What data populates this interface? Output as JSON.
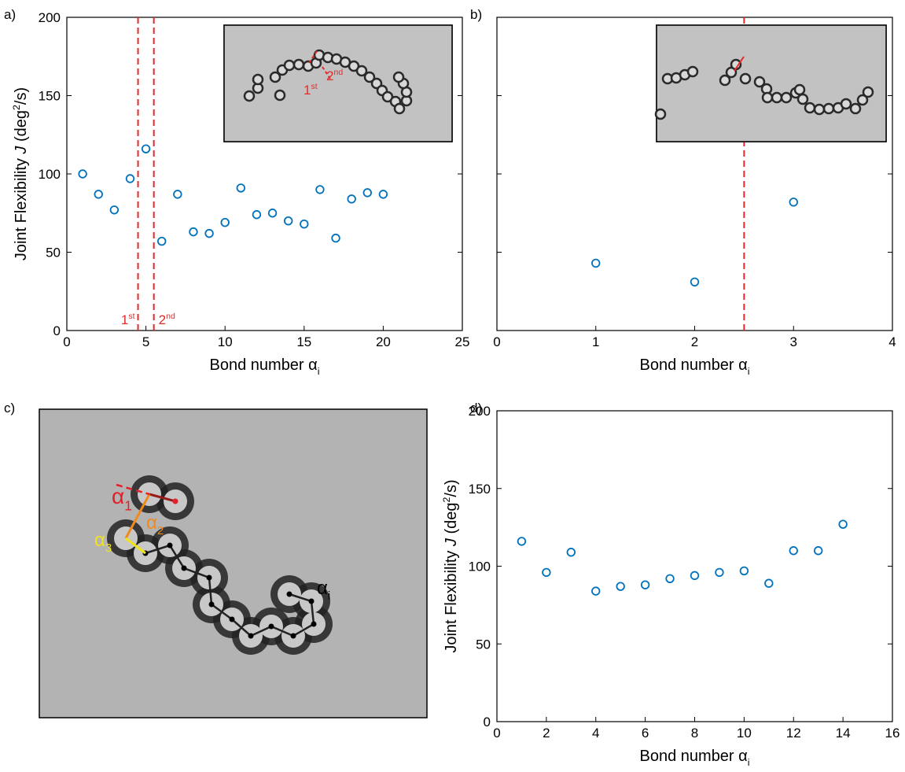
{
  "chart_data": [
    {
      "type": "scatter",
      "panel_label": "a)",
      "x": [
        1,
        2,
        3,
        4,
        5,
        6,
        7,
        8,
        9,
        10,
        11,
        12,
        13,
        14,
        15,
        16,
        17,
        18,
        19,
        20
      ],
      "values": [
        100,
        87,
        77,
        97,
        116,
        57,
        87,
        63,
        62,
        69,
        91,
        74,
        75,
        70,
        68,
        90,
        59,
        84,
        88,
        87
      ],
      "color": "#0072bd",
      "xlim": [
        0,
        25
      ],
      "xticks": [
        0,
        5,
        10,
        15,
        20,
        25
      ],
      "ylim": [
        0,
        200
      ],
      "yticks": [
        0,
        50,
        100,
        150,
        200
      ],
      "ytick_labels": true,
      "xlabel": [
        {
          "text": "Bond number α"
        },
        {
          "text": "i",
          "style": "sub"
        }
      ],
      "ylabel": [
        {
          "text": "Joint Flexibility "
        },
        {
          "text": "J",
          "style": "italic"
        },
        {
          "text": " (deg"
        },
        {
          "text": "2",
          "style": "sup"
        },
        {
          "text": "/s)"
        }
      ],
      "vline_color": "#e8272a",
      "vlines": [
        {
          "x": 4.5,
          "label": [
            {
              "text": "1"
            },
            {
              "text": "st",
              "style": "sup"
            }
          ]
        },
        {
          "x": 5.5,
          "label": [
            {
              "text": "2"
            },
            {
              "text": "nd",
              "style": "sup"
            }
          ]
        }
      ],
      "inset_labels": [
        [
          {
            "text": "1"
          },
          {
            "text": "st",
            "style": "sup"
          }
        ],
        [
          {
            "text": "2"
          },
          {
            "text": "nd",
            "style": "sup"
          }
        ]
      ]
    },
    {
      "type": "scatter",
      "panel_label": "b)",
      "x": [
        1,
        2,
        3
      ],
      "values": [
        43,
        31,
        82
      ],
      "color": "#0072bd",
      "xlim": [
        0,
        4
      ],
      "xticks": [
        0,
        1,
        2,
        3,
        4
      ],
      "ylim": [
        0,
        200
      ],
      "yticks": [
        0,
        50,
        100,
        150,
        200
      ],
      "ytick_labels": false,
      "xlabel": [
        {
          "text": "Bond number α"
        },
        {
          "text": "i",
          "style": "sub"
        }
      ],
      "vline_color": "#e8272a",
      "vlines": [
        {
          "x": 2.5
        }
      ]
    },
    {
      "type": "scatter",
      "panel_label": "d)",
      "x": [
        1,
        2,
        3,
        4,
        5,
        6,
        7,
        8,
        9,
        10,
        11,
        12,
        13,
        14
      ],
      "values": [
        116,
        96,
        109,
        84,
        87,
        88,
        92,
        94,
        96,
        97,
        89,
        110,
        110,
        127
      ],
      "color": "#0072bd",
      "xlim": [
        0,
        16
      ],
      "xticks": [
        0,
        2,
        4,
        6,
        8,
        10,
        12,
        14,
        16
      ],
      "ylim": [
        0,
        200
      ],
      "yticks": [
        0,
        50,
        100,
        150,
        200
      ],
      "ytick_labels": true,
      "xlabel": [
        {
          "text": "Bond number α"
        },
        {
          "text": "i",
          "style": "sub"
        }
      ],
      "ylabel": [
        {
          "text": "Joint Flexibility "
        },
        {
          "text": "J",
          "style": "italic"
        },
        {
          "text": " (deg"
        },
        {
          "text": "2",
          "style": "sup"
        },
        {
          "text": "/s)"
        }
      ]
    }
  ],
  "image_panel": {
    "panel_label": "c)",
    "labels": [
      {
        "parts": [
          {
            "text": "α"
          },
          {
            "text": "1",
            "style": "sub"
          }
        ],
        "color": "#e3202a"
      },
      {
        "parts": [
          {
            "text": "α"
          },
          {
            "text": "2",
            "style": "sub"
          }
        ],
        "color": "#f08a1c"
      },
      {
        "parts": [
          {
            "text": "α"
          },
          {
            "text": "3",
            "style": "sub"
          }
        ],
        "color": "#f2e21a"
      },
      {
        "parts": [
          {
            "text": "α"
          },
          {
            "text": "i",
            "style": "sub"
          }
        ],
        "color": "#000000"
      }
    ]
  }
}
